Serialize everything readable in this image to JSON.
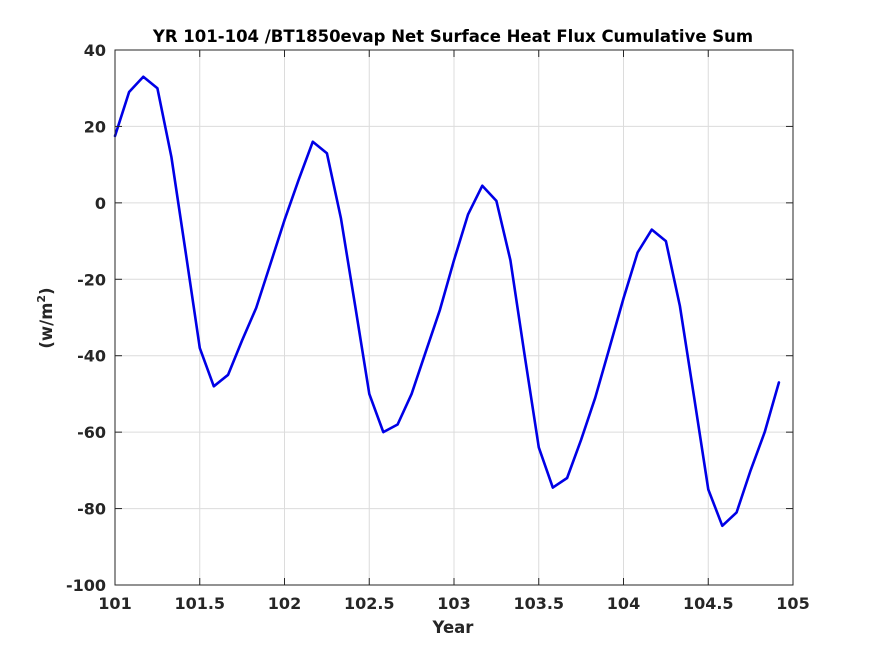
{
  "chart_data": {
    "type": "line",
    "title": "YR 101-104 /BT1850evap Net Surface Heat Flux  Cumulative Sum",
    "xlabel": "Year",
    "ylabel": "(w/m",
    "ylabel_sup": "2",
    "ylabel_close": ")",
    "xlim": [
      101,
      105
    ],
    "ylim": [
      -100,
      40
    ],
    "xticks": [
      101,
      101.5,
      102,
      102.5,
      103,
      103.5,
      104,
      104.5,
      105
    ],
    "xtick_labels": [
      "101",
      "101.5",
      "102",
      "102.5",
      "103",
      "103.5",
      "104",
      "104.5",
      "105"
    ],
    "yticks": [
      -100,
      -80,
      -60,
      -40,
      -20,
      0,
      20,
      40
    ],
    "ytick_labels": [
      "-100",
      "-80",
      "-60",
      "-40",
      "-20",
      "0",
      "20",
      "40"
    ],
    "grid": true,
    "line_color": "#0000e6",
    "series": [
      {
        "x": [
          101.0,
          101.083,
          101.167,
          101.25,
          101.333,
          101.417,
          101.5,
          101.583,
          101.667,
          101.75,
          101.833,
          101.917,
          102.0,
          102.083,
          102.167,
          102.25,
          102.333,
          102.417,
          102.5,
          102.583,
          102.667,
          102.75,
          102.833,
          102.917,
          103.0,
          103.083,
          103.167,
          103.25,
          103.333,
          103.417,
          103.5,
          103.583,
          103.667,
          103.75,
          103.833,
          103.917,
          104.0,
          104.083,
          104.167,
          104.25,
          104.333,
          104.417,
          104.5,
          104.583,
          104.667,
          104.75,
          104.833,
          104.917
        ],
        "y": [
          17.5,
          29,
          33,
          30,
          12,
          -13,
          -38,
          -48,
          -45,
          -36,
          -27.5,
          -16,
          -4.5,
          6,
          16,
          13,
          -4,
          -27,
          -50,
          -60,
          -58,
          -50,
          -39,
          -28,
          -15,
          -3,
          4.5,
          0.5,
          -15,
          -40,
          -64,
          -74.5,
          -72,
          -62,
          -51,
          -38,
          -25,
          -13,
          -7,
          -10,
          -27,
          -51,
          -75,
          -84.5,
          -81,
          -70,
          -60,
          -47
        ]
      }
    ]
  }
}
